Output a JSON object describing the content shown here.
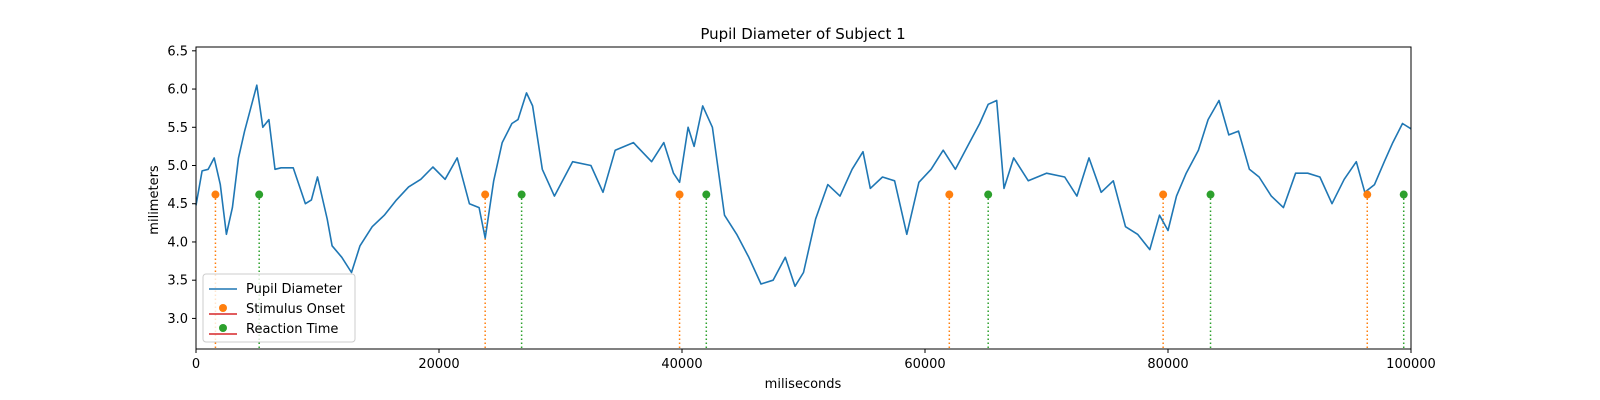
{
  "chart_data": {
    "type": "line",
    "title": "Pupil Diameter of Subject 1",
    "xlabel": "miliseconds",
    "ylabel": "milimeters",
    "xlim": [
      0,
      100000
    ],
    "ylim": [
      2.6,
      6.55
    ],
    "x_ticks": [
      0,
      20000,
      40000,
      60000,
      80000,
      100000
    ],
    "x_tick_labels": [
      "0",
      "20000",
      "40000",
      "60000",
      "80000",
      "100000"
    ],
    "y_ticks": [
      3.0,
      3.5,
      4.0,
      4.5,
      5.0,
      5.5,
      6.0,
      6.5
    ],
    "y_tick_labels": [
      "3.0",
      "3.5",
      "4.0",
      "4.5",
      "5.0",
      "5.5",
      "6.0",
      "6.5"
    ],
    "grid": false,
    "legend_position": "lower-left",
    "series": [
      {
        "name": "Pupil Diameter",
        "color": "#1f77b4",
        "x": [
          0,
          500,
          1000,
          1500,
          2000,
          2500,
          3000,
          3500,
          4000,
          4500,
          5000,
          5500,
          6000,
          6500,
          7000,
          8000,
          9000,
          9500,
          10000,
          10800,
          11200,
          12000,
          12800,
          13500,
          14500,
          15500,
          16500,
          17500,
          18500,
          19500,
          20500,
          21500,
          22000,
          22500,
          23300,
          23800,
          24500,
          25200,
          26000,
          26500,
          27200,
          27700,
          28500,
          29500,
          31000,
          32500,
          33500,
          34500,
          36000,
          37500,
          38500,
          39300,
          39800,
          40500,
          41000,
          41700,
          42500,
          43500,
          44500,
          45500,
          46500,
          47500,
          48500,
          49300,
          50000,
          51000,
          52000,
          53000,
          54000,
          54900,
          55500,
          56500,
          57500,
          58500,
          59500,
          60500,
          61500,
          62500,
          63500,
          64500,
          65200,
          65900,
          66500,
          67300,
          68500,
          70000,
          71500,
          72500,
          73500,
          74500,
          75500,
          76500,
          77500,
          78500,
          79300,
          80000,
          80700,
          81500,
          82500,
          83300,
          84200,
          85000,
          85800,
          86700,
          87500,
          88500,
          89500,
          90500,
          91500,
          92500,
          93500,
          94500,
          95500,
          96200,
          97000,
          97800,
          98500,
          99300,
          100000
        ],
        "y": [
          4.48,
          4.93,
          4.95,
          5.1,
          4.75,
          4.1,
          4.45,
          5.1,
          5.45,
          5.75,
          6.05,
          5.5,
          5.6,
          4.95,
          4.97,
          4.97,
          4.5,
          4.55,
          4.85,
          4.3,
          3.95,
          3.8,
          3.6,
          3.95,
          4.2,
          4.35,
          4.55,
          4.72,
          4.82,
          4.98,
          4.82,
          5.1,
          4.8,
          4.5,
          4.45,
          4.05,
          4.8,
          5.3,
          5.55,
          5.6,
          5.95,
          5.78,
          4.95,
          4.6,
          5.05,
          5.0,
          4.65,
          5.2,
          5.3,
          5.05,
          5.3,
          4.9,
          4.78,
          5.5,
          5.25,
          5.78,
          5.5,
          4.35,
          4.1,
          3.8,
          3.45,
          3.5,
          3.8,
          3.42,
          3.6,
          4.3,
          4.75,
          4.6,
          4.95,
          5.18,
          4.7,
          4.85,
          4.8,
          4.1,
          4.78,
          4.95,
          5.2,
          4.95,
          5.25,
          5.55,
          5.8,
          5.85,
          4.7,
          5.1,
          4.8,
          4.9,
          4.85,
          4.6,
          5.1,
          4.65,
          4.8,
          4.2,
          4.1,
          3.9,
          4.35,
          4.15,
          4.6,
          4.9,
          5.2,
          5.6,
          5.85,
          5.4,
          5.45,
          4.95,
          4.85,
          4.6,
          4.45,
          4.9,
          4.9,
          4.85,
          4.5,
          4.82,
          5.05,
          4.65,
          4.75,
          5.05,
          5.3,
          5.55,
          5.48
        ]
      }
    ],
    "stimulus_onset": {
      "name": "Stimulus Onset",
      "marker_color": "#ff7f0e",
      "stem_color": "#ff7f0e",
      "legend_line_color": "#d62728",
      "y": 4.62,
      "x": [
        1600,
        23800,
        39800,
        62000,
        79600,
        96400
      ]
    },
    "reaction_time": {
      "name": "Reaction Time",
      "marker_color": "#2ca02c",
      "stem_color": "#2ca02c",
      "legend_line_color": "#d62728",
      "y": 4.62,
      "x": [
        5200,
        26800,
        42000,
        65200,
        83500,
        99400
      ]
    }
  }
}
